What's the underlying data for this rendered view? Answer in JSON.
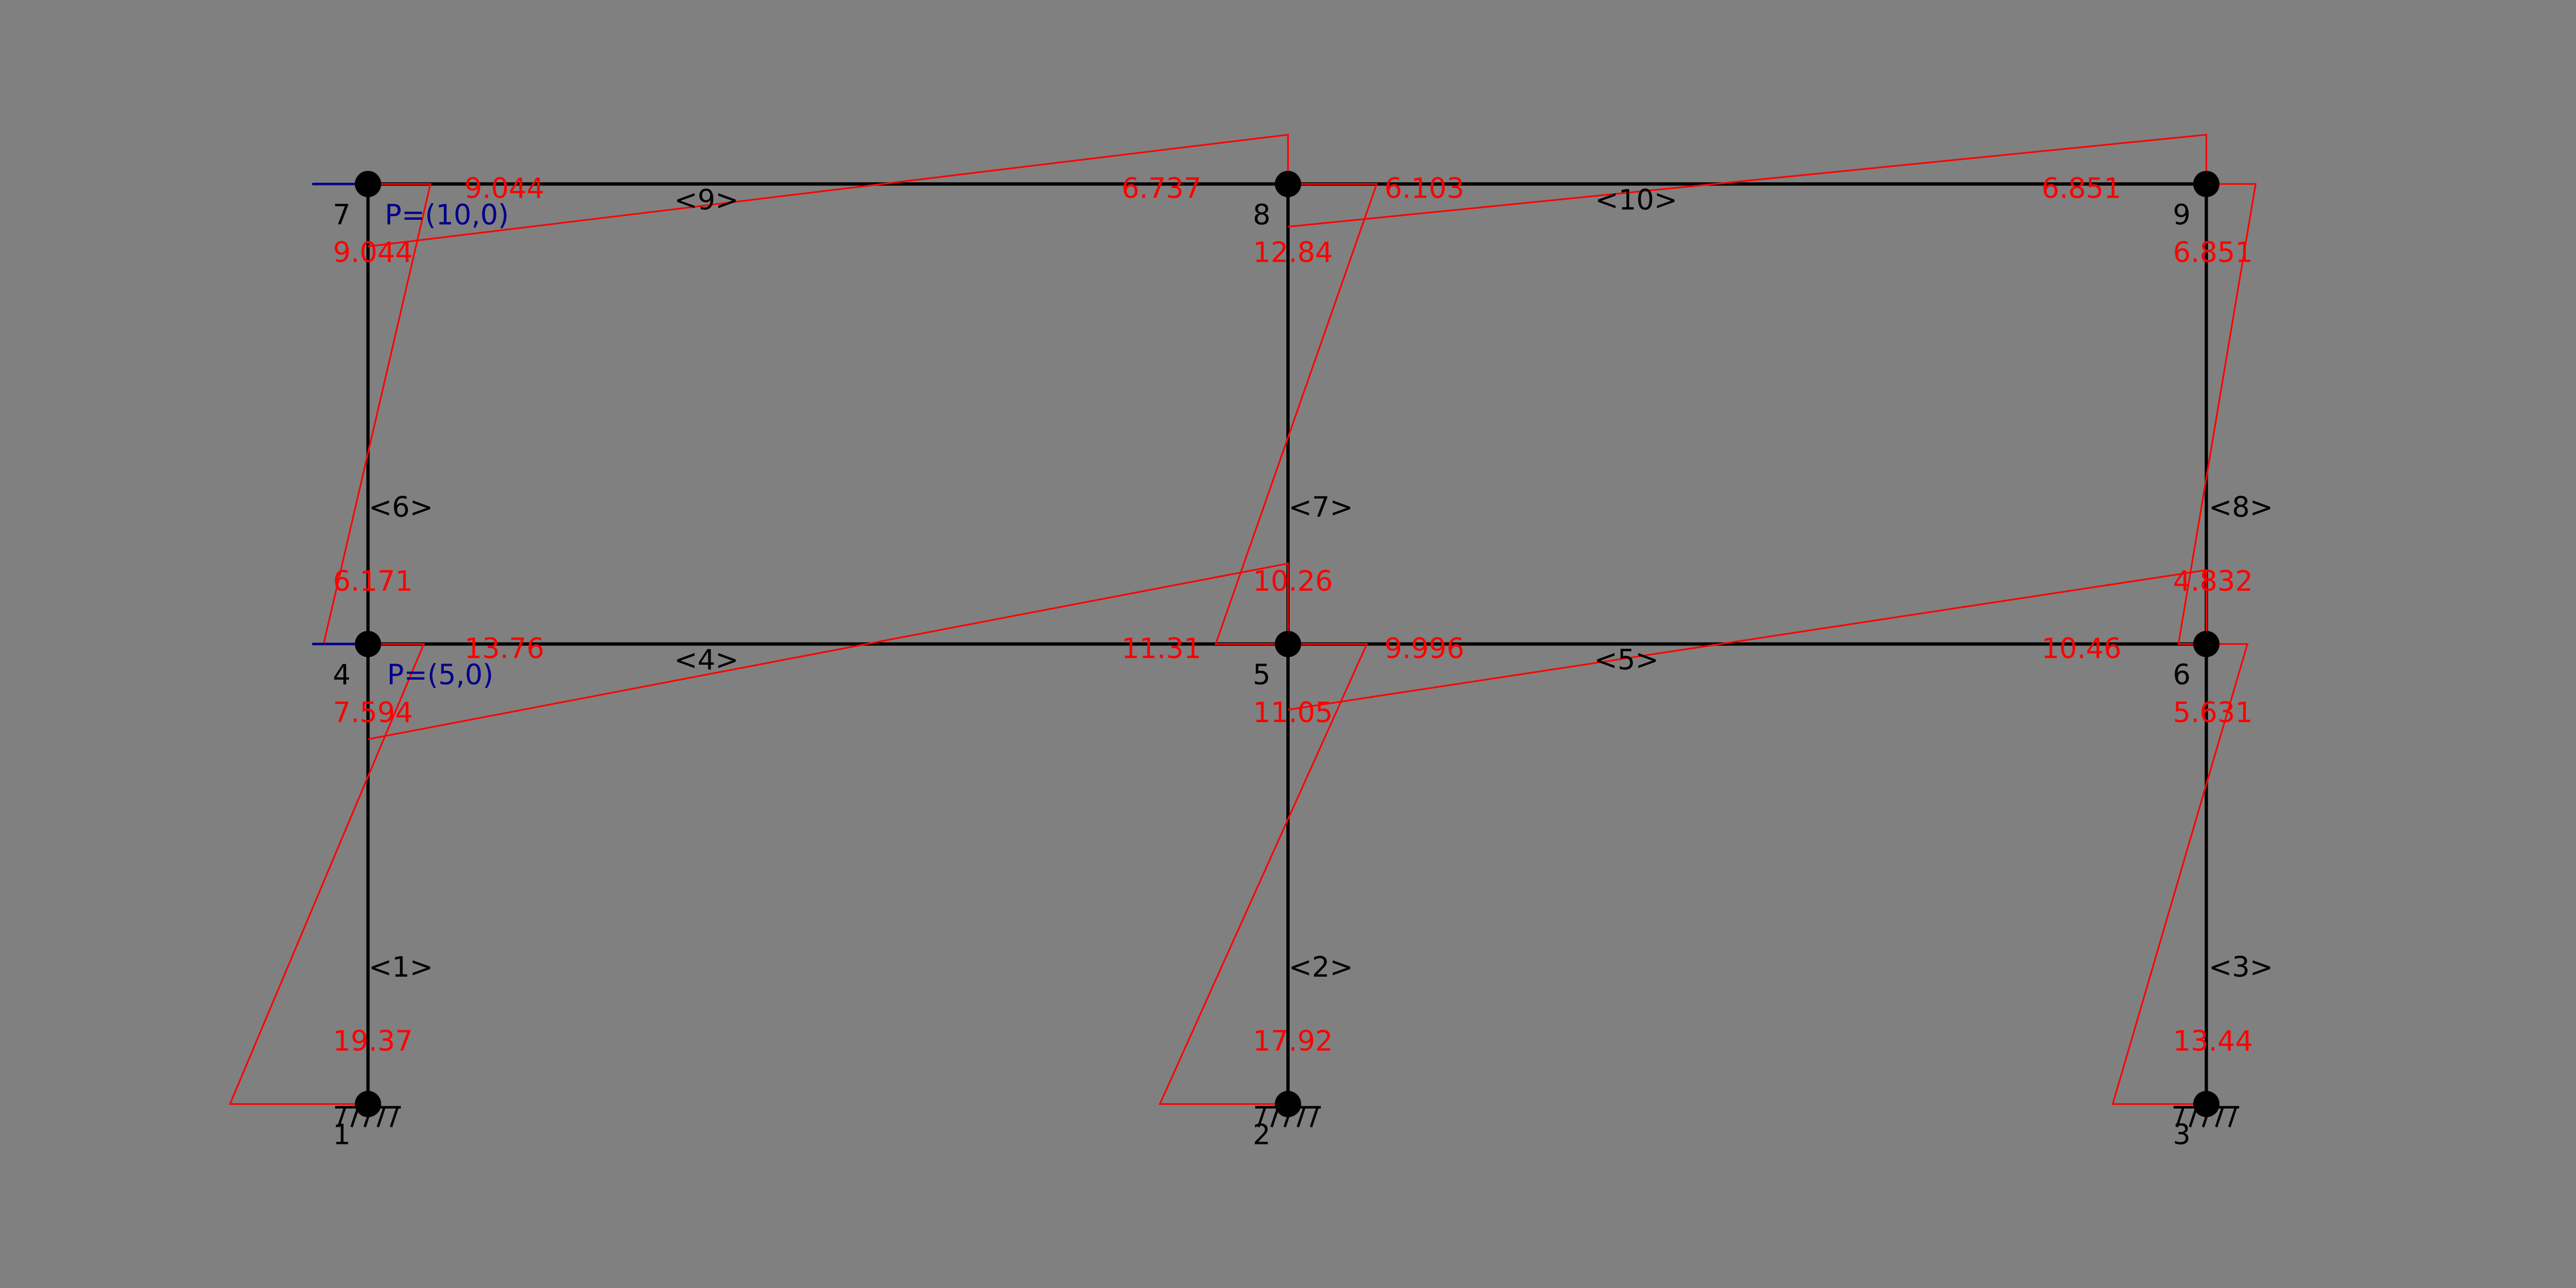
{
  "nodes": [
    "1",
    "2",
    "3",
    "4",
    "5",
    "6",
    "7",
    "8",
    "9"
  ],
  "members": [
    "<1>",
    "<2>",
    "<3>",
    "<4>",
    "<5>",
    "<6>",
    "<7>",
    "<8>",
    "<9>",
    "<10>"
  ],
  "loads": [
    "P=(10,0)",
    "P=(5,0)"
  ],
  "moments": [
    "9.044",
    "6.737",
    "9.044",
    "6.171",
    "6.103",
    "6.851",
    "12.84",
    "10.26",
    "6.851",
    "4.832",
    "13.76",
    "11.31",
    "7.594",
    "19.37",
    "9.996",
    "10.46",
    "11.05",
    "17.92",
    "5.631",
    "13.44"
  ]
}
